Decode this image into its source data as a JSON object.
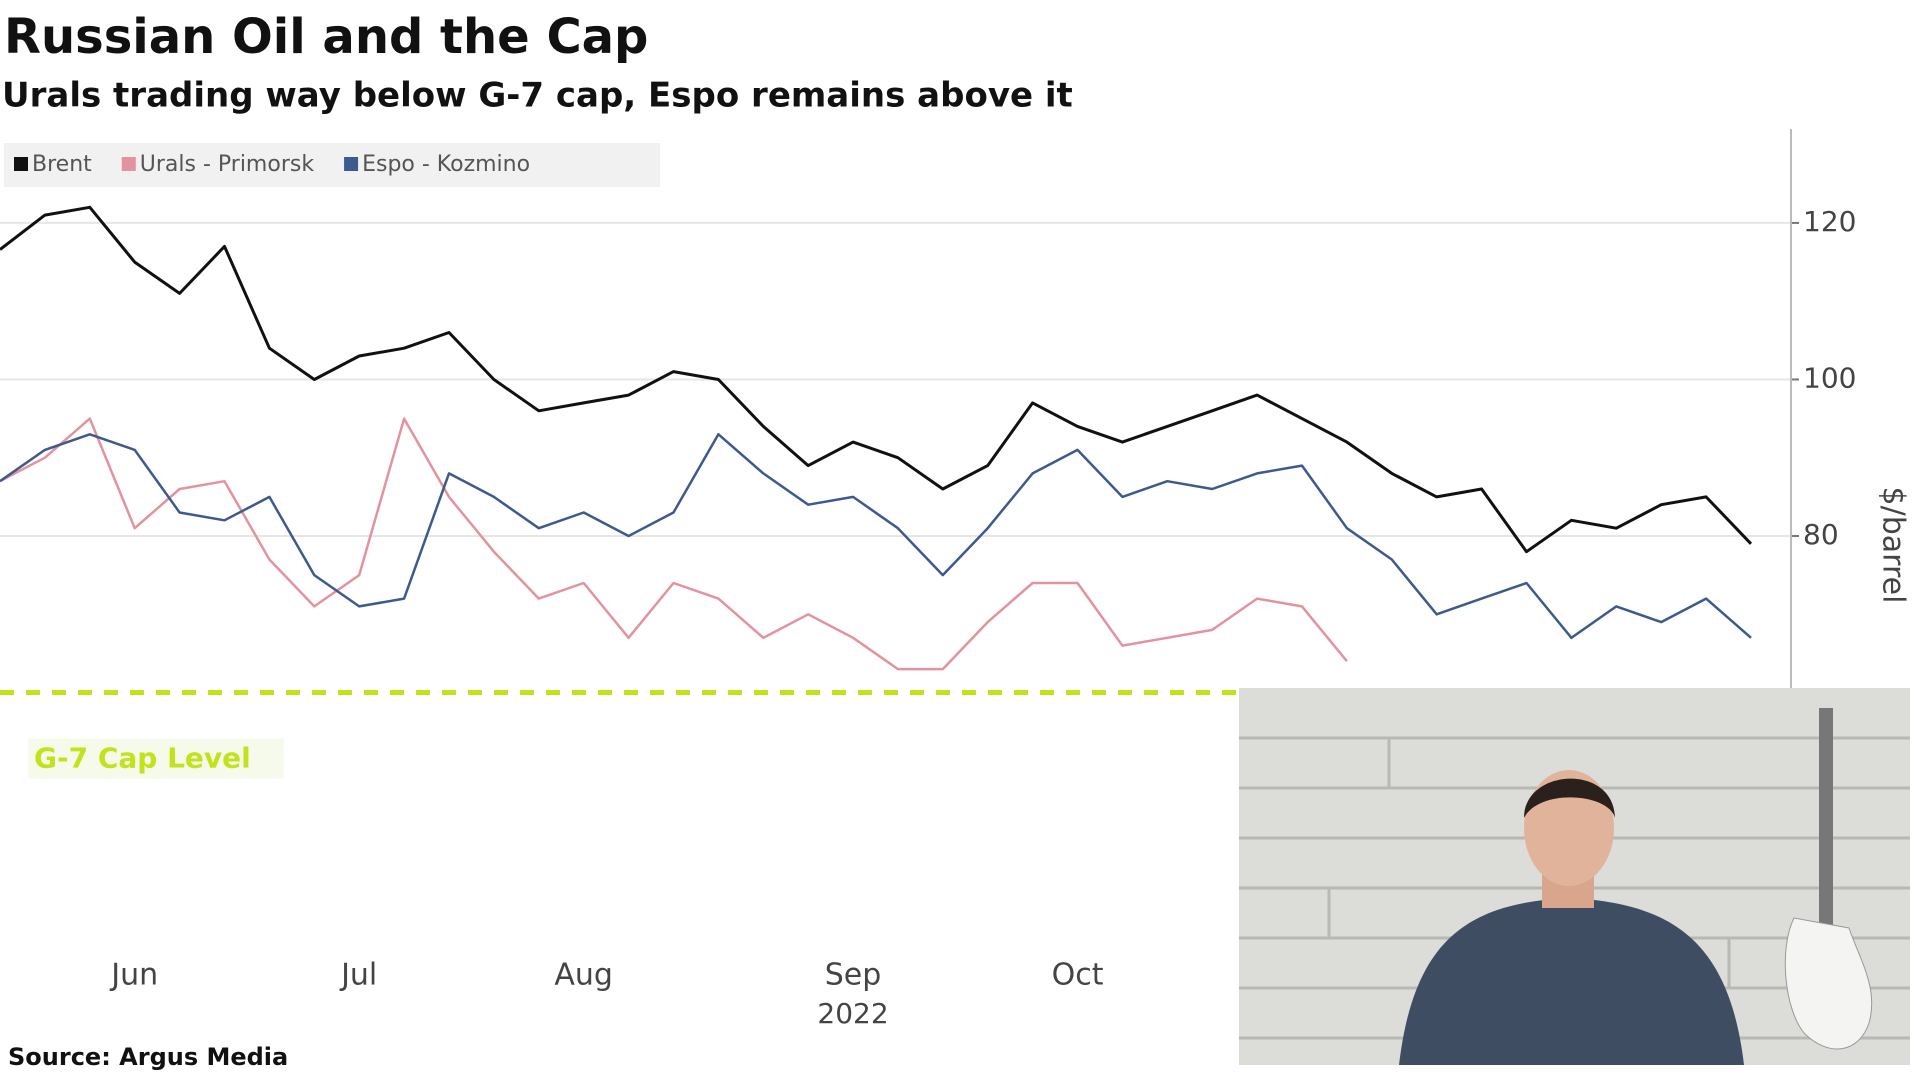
{
  "chart_data": {
    "type": "line",
    "title": "Russian Oil and the Cap",
    "subtitle": "Urals trading way below G-7 cap, Espo remains above it",
    "source": "Source: Argus Media",
    "y_label": "$/barrel",
    "year_label": "2022",
    "cap_level": 60,
    "cap_label": "G-7 Cap Level",
    "cap_color": "#c4e21a",
    "categories": [
      null,
      null,
      null,
      "Jun",
      null,
      null,
      null,
      null,
      "Jul",
      null,
      null,
      null,
      null,
      "Aug",
      null,
      null,
      null,
      null,
      null,
      "Sep",
      null,
      null,
      null,
      null,
      "Oct",
      null,
      null,
      null,
      null,
      null,
      null,
      null,
      null,
      null,
      null,
      null,
      null,
      null,
      null,
      null
    ],
    "series": [
      {
        "name": "Brent",
        "color": "#111111",
        "values": [
          116.6,
          121,
          122,
          115,
          111,
          117,
          104,
          100,
          103,
          104,
          106,
          100,
          96,
          97,
          98,
          101,
          100,
          94,
          89,
          92,
          90,
          86,
          89,
          97,
          94,
          92,
          94,
          96,
          98,
          95,
          92,
          88,
          85,
          86,
          78,
          82,
          81,
          84,
          85,
          79
        ]
      },
      {
        "name": "Urals - Primorsk",
        "color": "#e2939f",
        "values": [
          87,
          90,
          95,
          81,
          86,
          87,
          77,
          71,
          75,
          95,
          85,
          78,
          72,
          74,
          67,
          74,
          72,
          67,
          70,
          67,
          63,
          63,
          69,
          74,
          74,
          66,
          67,
          68,
          72,
          71,
          64,
          null,
          null,
          null,
          null,
          null,
          null,
          null,
          null,
          null
        ]
      },
      {
        "name": "Espo - Kozmino",
        "color": "#3d5a8f",
        "values": [
          87,
          91,
          93,
          91,
          83,
          82,
          85,
          75,
          71,
          72,
          88,
          85,
          81,
          83,
          80,
          83,
          93,
          88,
          84,
          85,
          81,
          75,
          81,
          88,
          91,
          85,
          87,
          86,
          88,
          89,
          81,
          77,
          70,
          72,
          74,
          67,
          71,
          69,
          72,
          67
        ]
      }
    ],
    "ylim": [
      28,
      132
    ],
    "yticks": [
      80,
      100,
      120
    ],
    "grid": true
  }
}
